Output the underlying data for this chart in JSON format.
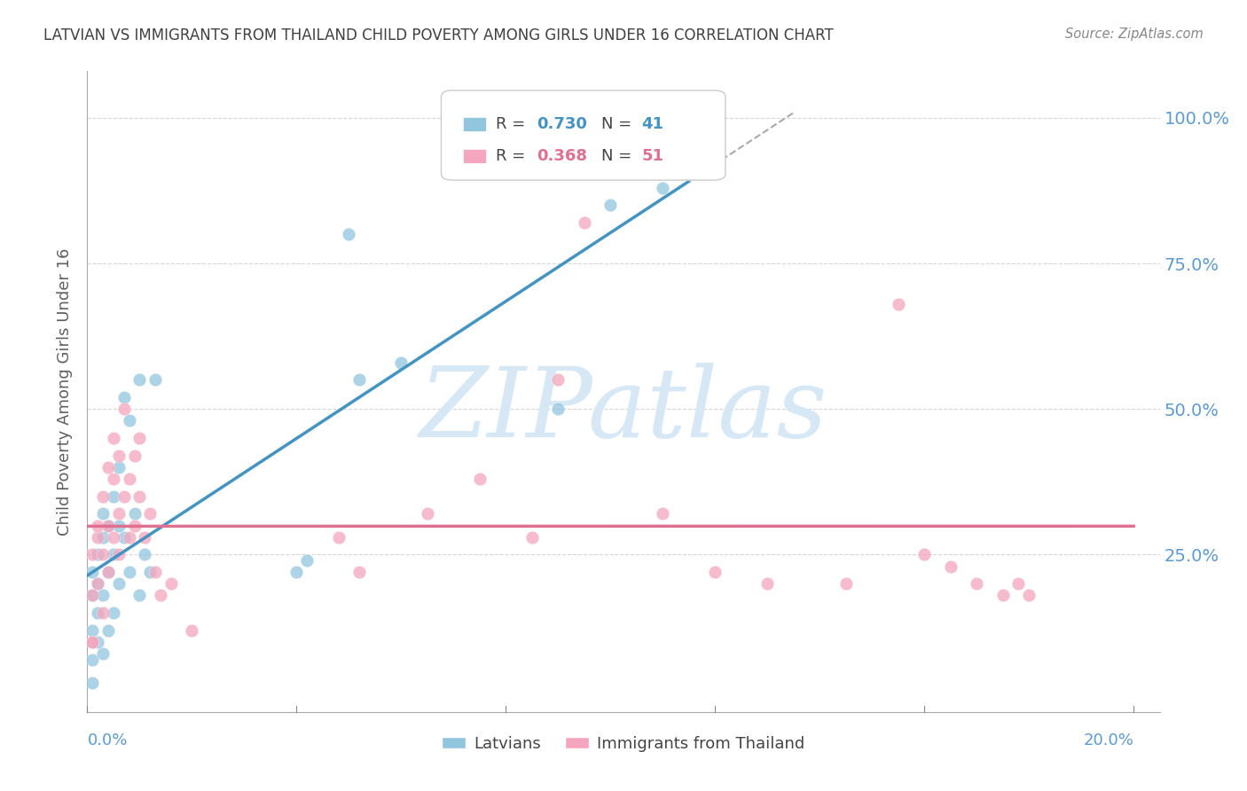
{
  "title": "LATVIAN VS IMMIGRANTS FROM THAILAND CHILD POVERTY AMONG GIRLS UNDER 16 CORRELATION CHART",
  "source": "Source: ZipAtlas.com",
  "ylabel": "Child Poverty Among Girls Under 16",
  "legend_latvians": "Latvians",
  "legend_thailand": "Immigrants from Thailand",
  "legend_r_latvian": "R = 0.730",
  "legend_n_latvian": "N = 41",
  "legend_r_thailand": "R = 0.368",
  "legend_n_thailand": "N = 51",
  "watermark": "ZIPatlas",
  "latvian_color": "#92c5de",
  "thailand_color": "#f4a6be",
  "latvian_line_color": "#4393c3",
  "thailand_line_color": "#e07090",
  "background_color": "#ffffff",
  "grid_color": "#cccccc",
  "axis_label_color": "#5b9bd5",
  "title_color": "#404040",
  "ylabel_color": "#606060",
  "watermark_color": "#d6e8f5",
  "latvian_x": [
    0.001,
    0.001,
    0.001,
    0.001,
    0.001,
    0.002,
    0.002,
    0.002,
    0.002,
    0.003,
    0.003,
    0.003,
    0.003,
    0.004,
    0.004,
    0.004,
    0.005,
    0.005,
    0.005,
    0.006,
    0.006,
    0.006,
    0.007,
    0.007,
    0.008,
    0.008,
    0.009,
    0.01,
    0.01,
    0.011,
    0.012,
    0.013,
    0.04,
    0.042,
    0.05,
    0.052,
    0.06,
    0.09,
    0.1,
    0.11,
    0.115
  ],
  "latvian_y": [
    0.03,
    0.07,
    0.12,
    0.18,
    0.22,
    0.1,
    0.15,
    0.2,
    0.25,
    0.08,
    0.18,
    0.28,
    0.32,
    0.12,
    0.22,
    0.3,
    0.15,
    0.25,
    0.35,
    0.2,
    0.3,
    0.4,
    0.28,
    0.52,
    0.22,
    0.48,
    0.32,
    0.18,
    0.55,
    0.25,
    0.22,
    0.55,
    0.22,
    0.24,
    0.8,
    0.55,
    0.58,
    0.5,
    0.85,
    0.88,
    0.97
  ],
  "thailand_x": [
    0.001,
    0.001,
    0.001,
    0.002,
    0.002,
    0.002,
    0.003,
    0.003,
    0.003,
    0.004,
    0.004,
    0.004,
    0.005,
    0.005,
    0.005,
    0.006,
    0.006,
    0.006,
    0.007,
    0.007,
    0.008,
    0.008,
    0.009,
    0.009,
    0.01,
    0.01,
    0.011,
    0.012,
    0.013,
    0.014,
    0.016,
    0.02,
    0.048,
    0.052,
    0.065,
    0.075,
    0.085,
    0.09,
    0.095,
    0.11,
    0.12,
    0.13,
    0.145,
    0.155,
    0.16,
    0.165,
    0.17,
    0.175,
    0.178,
    0.18,
    0.001
  ],
  "thailand_y": [
    0.1,
    0.18,
    0.25,
    0.2,
    0.28,
    0.3,
    0.15,
    0.25,
    0.35,
    0.22,
    0.3,
    0.4,
    0.28,
    0.38,
    0.45,
    0.25,
    0.32,
    0.42,
    0.35,
    0.5,
    0.28,
    0.38,
    0.3,
    0.42,
    0.35,
    0.45,
    0.28,
    0.32,
    0.22,
    0.18,
    0.2,
    0.12,
    0.28,
    0.22,
    0.32,
    0.38,
    0.28,
    0.55,
    0.82,
    0.32,
    0.22,
    0.2,
    0.2,
    0.68,
    0.25,
    0.23,
    0.2,
    0.18,
    0.2,
    0.18,
    0.1
  ],
  "xlim_min": 0.0,
  "xlim_max": 0.205,
  "ylim_min": -0.02,
  "ylim_max": 1.08,
  "ytick_positions": [
    0.25,
    0.5,
    0.75,
    1.0
  ],
  "ytick_labels": [
    "25.0%",
    "50.0%",
    "75.0%",
    "100.0%"
  ],
  "xtick_left_label": "0.0%",
  "xtick_right_label": "20.0%"
}
